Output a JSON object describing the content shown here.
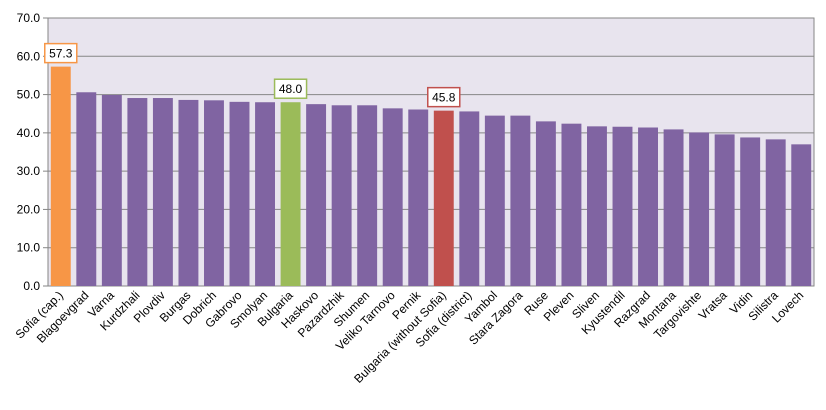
{
  "chart_data": {
    "type": "bar",
    "categories": [
      "Sofia (cap.)",
      "Blagoevgrad",
      "Varna",
      "Kurdzhali",
      "Plovdiv",
      "Burgas",
      "Dobrich",
      "Gabrovo",
      "Smolyan",
      "Bulgaria",
      "Haskovo",
      "Pazardzhik",
      "Shumen",
      "Veliko Tarnovo",
      "Pernik",
      "Bulgaria (without Sofia)",
      "Sofia (district)",
      "Yambol",
      "Stara Zagora",
      "Ruse",
      "Pleven",
      "Sliven",
      "Kyustendil",
      "Razgrad",
      "Montana",
      "Targovishte",
      "Vratsa",
      "Vidin",
      "Silistra",
      "Lovech"
    ],
    "values": [
      57.3,
      50.6,
      49.9,
      49.1,
      49.1,
      48.6,
      48.5,
      48.1,
      48.0,
      48.0,
      47.5,
      47.2,
      47.2,
      46.4,
      46.1,
      45.8,
      45.6,
      44.5,
      44.5,
      43.0,
      42.4,
      41.7,
      41.6,
      41.4,
      40.9,
      40.1,
      39.6,
      38.8,
      38.3,
      37.0
    ],
    "ylim": [
      0,
      70
    ],
    "yticks": [
      "0.0",
      "10.0",
      "20.0",
      "30.0",
      "40.0",
      "50.0",
      "60.0",
      "70.0"
    ],
    "grid": true,
    "colors": {
      "default": "#8064A2",
      "highlight_capital": "#F79646",
      "highlight_national": "#9BBB59",
      "highlight_national_excl": "#C0504D",
      "plot_background": "#E8E4EE",
      "gridline": "#868686"
    },
    "highlights": [
      {
        "index": 0,
        "color": "#F79646",
        "label": "57.3"
      },
      {
        "index": 9,
        "color": "#9BBB59",
        "label": "48.0"
      },
      {
        "index": 15,
        "color": "#C0504D",
        "label": "45.8"
      }
    ]
  }
}
